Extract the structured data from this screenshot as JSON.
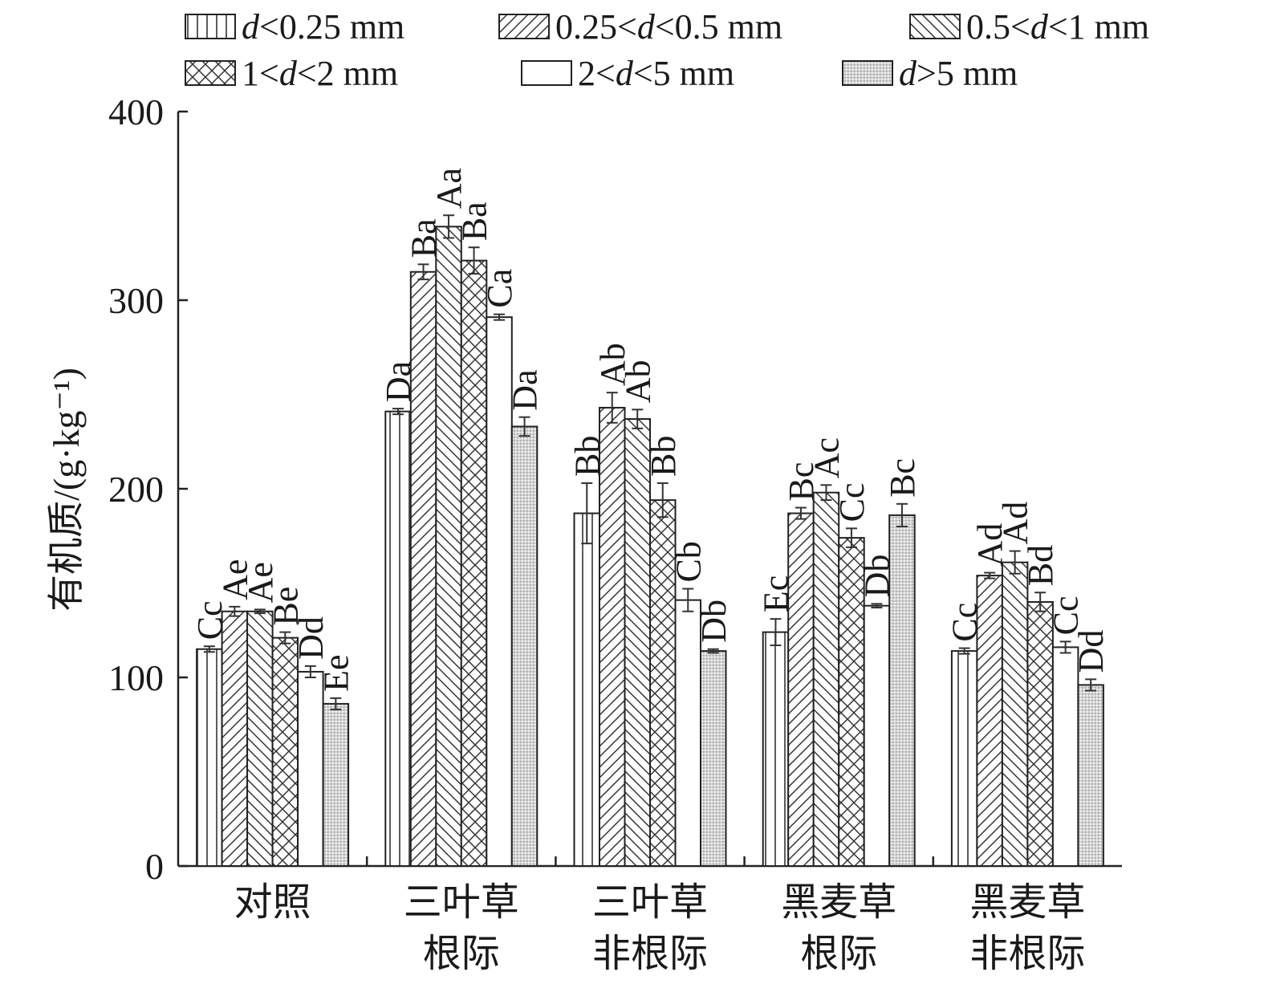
{
  "chart_data": {
    "type": "bar",
    "ylabel": "有机质/(g·kg⁻¹)",
    "ylim": [
      0,
      400
    ],
    "yticks": [
      0,
      100,
      200,
      300,
      400
    ],
    "grid": false,
    "legend_position": "top",
    "categories": [
      [
        "对照"
      ],
      [
        "三叶草",
        "根际"
      ],
      [
        "三叶草",
        "非根际"
      ],
      [
        "黑麦草",
        "根际"
      ],
      [
        "黑麦草",
        "非根际"
      ]
    ],
    "series": [
      {
        "name": "d<0.25 mm",
        "legend_parts": [
          [
            "d",
            true
          ],
          [
            "<0.25 mm",
            false
          ]
        ],
        "pattern": "vlines",
        "values": [
          115,
          241,
          187,
          124,
          114
        ],
        "errors": [
          1.5,
          1.5,
          16,
          7,
          1.5
        ],
        "labels": [
          "Cc",
          "Da",
          "Bb",
          "Ec",
          "Cc"
        ]
      },
      {
        "name": "0.25<d<0.5 mm",
        "legend_parts": [
          [
            "0.25<",
            false
          ],
          [
            "d",
            true
          ],
          [
            "<0.5 mm",
            false
          ]
        ],
        "pattern": "fdiag",
        "values": [
          135,
          315,
          243,
          187,
          154
        ],
        "errors": [
          2.5,
          4,
          8,
          3,
          1.5
        ],
        "labels": [
          "Ae",
          "Ba",
          "Ab",
          "Bc",
          "Ad"
        ]
      },
      {
        "name": "0.5<d<1 mm",
        "legend_parts": [
          [
            "0.5<",
            false
          ],
          [
            "d",
            true
          ],
          [
            "<1 mm",
            false
          ]
        ],
        "pattern": "bdiag",
        "values": [
          135,
          339,
          237,
          198,
          161
        ],
        "errors": [
          1,
          6,
          5,
          4,
          6
        ],
        "labels": [
          "Ae",
          "Aa",
          "Ab",
          "Ac",
          "Ad"
        ]
      },
      {
        "name": "1<d<2 mm",
        "legend_parts": [
          [
            "1<",
            false
          ],
          [
            "d",
            true
          ],
          [
            "<2 mm",
            false
          ]
        ],
        "pattern": "cross",
        "values": [
          121,
          321,
          194,
          174,
          140
        ],
        "errors": [
          3,
          7,
          9,
          5,
          5
        ],
        "labels": [
          "Be",
          "Ba",
          "Bb",
          "Cc",
          "Bd"
        ]
      },
      {
        "name": "2<d<5 mm",
        "legend_parts": [
          [
            "2<",
            false
          ],
          [
            "d",
            true
          ],
          [
            "<5 mm",
            false
          ]
        ],
        "pattern": "blank",
        "values": [
          103,
          291,
          141,
          138,
          116
        ],
        "errors": [
          3,
          1.5,
          6,
          1,
          3
        ],
        "labels": [
          "Dd",
          "Ca",
          "Cb",
          "Db",
          "Cc"
        ]
      },
      {
        "name": "d>5 mm",
        "legend_parts": [
          [
            "d",
            true
          ],
          [
            ">5 mm",
            false
          ]
        ],
        "pattern": "dots",
        "values": [
          86,
          233,
          114,
          186,
          96
        ],
        "errors": [
          3,
          5,
          1,
          6,
          3
        ],
        "labels": [
          "Ee",
          "Da",
          "Db",
          "Bc",
          "Dd"
        ]
      }
    ]
  }
}
